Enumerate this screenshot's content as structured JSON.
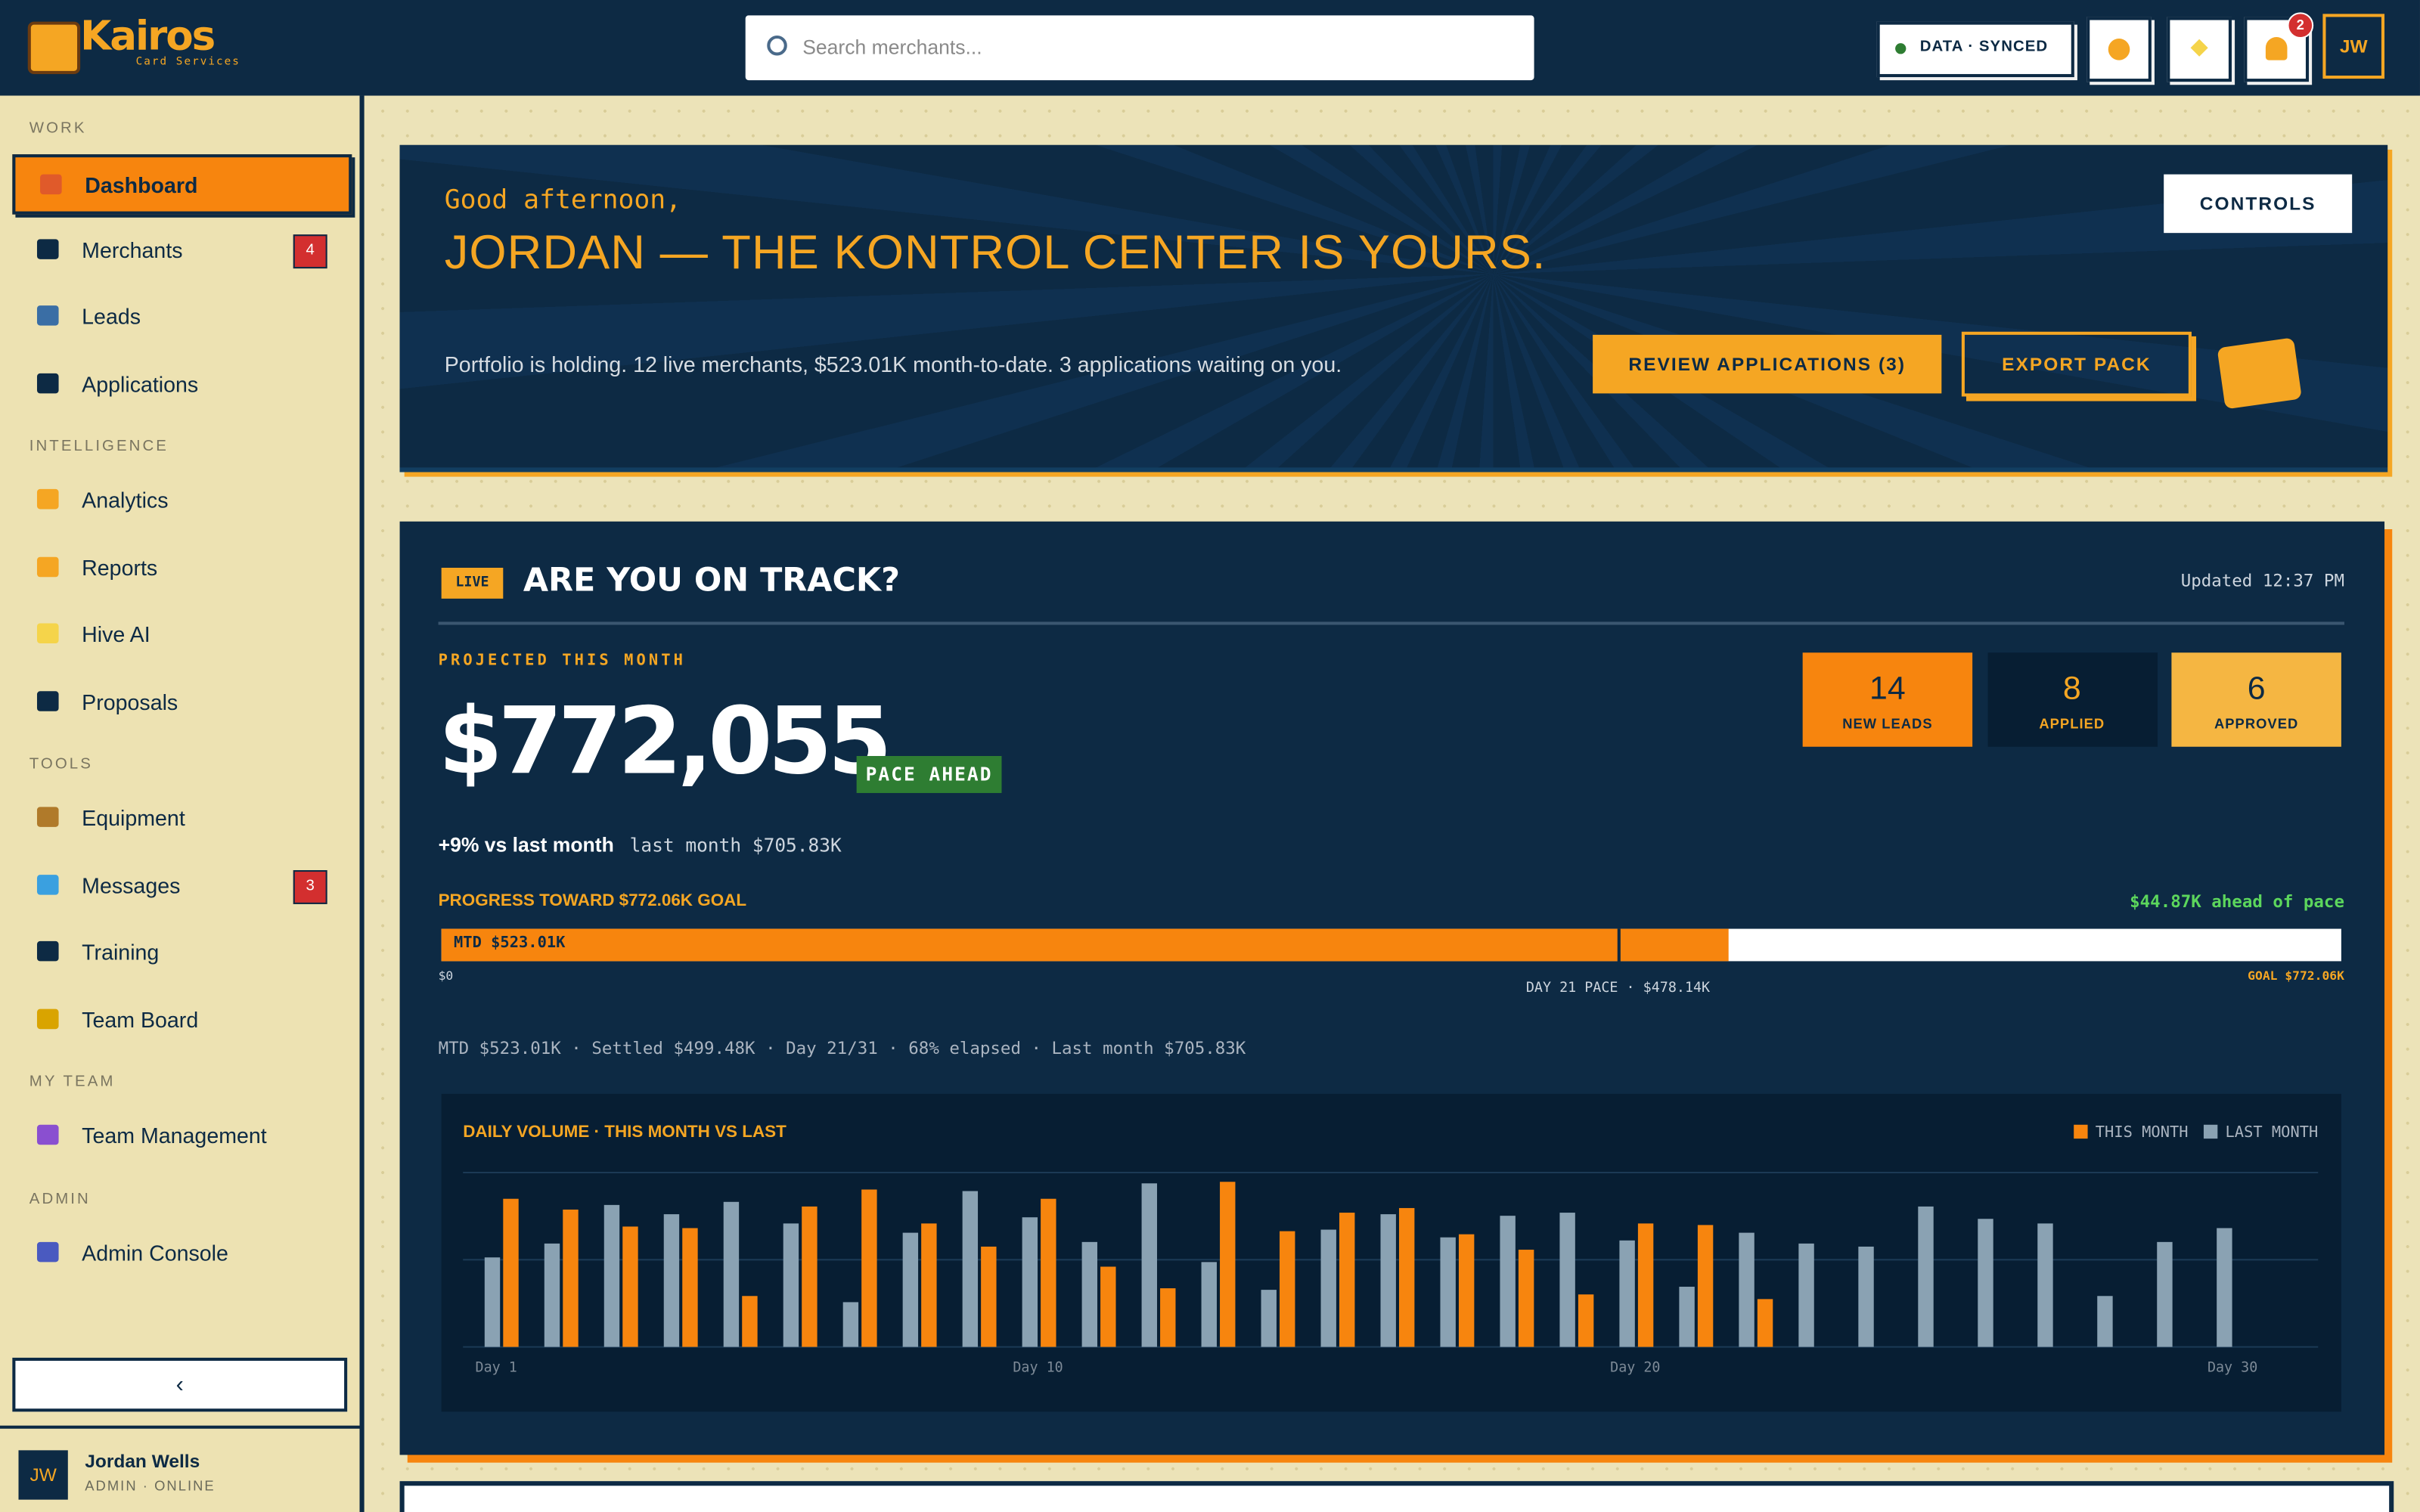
{
  "header": {
    "logo": "Kairos",
    "logo_sub": "Card Services",
    "search_placeholder": "Search merchants...",
    "sync_status": "DATA · SYNCED",
    "notifications": "2",
    "avatar": "JW"
  },
  "sidebar": {
    "sections": [
      {
        "title": "WORK",
        "items": [
          {
            "label": "Dashboard"
          },
          {
            "label": "Merchants",
            "badge": "4"
          },
          {
            "label": "Leads"
          },
          {
            "label": "Applications"
          }
        ]
      },
      {
        "title": "INTELLIGENCE",
        "items": [
          {
            "label": "Analytics"
          },
          {
            "label": "Reports"
          },
          {
            "label": "Hive AI"
          },
          {
            "label": "Proposals"
          }
        ]
      },
      {
        "title": "TOOLS",
        "items": [
          {
            "label": "Equipment"
          },
          {
            "label": "Messages",
            "badge": "3"
          },
          {
            "label": "Training"
          },
          {
            "label": "Team Board"
          }
        ]
      },
      {
        "title": "MY TEAM",
        "items": [
          {
            "label": "Team Management"
          }
        ]
      },
      {
        "title": "ADMIN",
        "items": [
          {
            "label": "Admin Console"
          }
        ]
      }
    ],
    "collapse": "‹",
    "user": {
      "initials": "JW",
      "name": "Jordan Wells",
      "role": "ADMIN · ONLINE"
    }
  },
  "hero": {
    "greeting": "Good afternoon,",
    "headline": "JORDAN — THE KONTROL CENTER IS YOURS.",
    "summary": "Portfolio is holding. 12 live merchants, $523.01K month-to-date. 3 applications waiting on you.",
    "controls": "CONTROLS",
    "review": "REVIEW APPLICATIONS (3)",
    "export": "EXPORT PACK"
  },
  "track": {
    "badge": "LIVE",
    "title": "ARE YOU ON TRACK?",
    "updated": "Updated 12:37 PM",
    "projected_label": "PROJECTED THIS MONTH",
    "projected": "$772,055",
    "pace": "PACE AHEAD",
    "delta": "+9% vs last month",
    "last_month": "last month $705.83K",
    "stats": [
      {
        "value": "14",
        "label": "NEW LEADS"
      },
      {
        "value": "8",
        "label": "APPLIED"
      },
      {
        "value": "6",
        "label": "APPROVED"
      }
    ],
    "progress_label": "PROGRESS TOWARD $772.06K GOAL",
    "ahead": "$44.87K ahead of pace",
    "progress": {
      "mtd": 523.01,
      "mtd_label": "MTD $523.01K",
      "pace": 478.14,
      "pace_label": "DAY 21 PACE · $478.14K",
      "goal": 772.06,
      "goal_label": "GOAL $772.06K",
      "start": 0,
      "start_label": "$0"
    },
    "footer": "MTD $523.01K · Settled $499.48K · Day 21/31 · 68% elapsed · Last month $705.83K"
  },
  "chart_data": {
    "type": "bar",
    "title": "DAILY VOLUME · THIS MONTH VS LAST",
    "categories": [
      "Day 1",
      null,
      null,
      null,
      null,
      null,
      null,
      null,
      null,
      "Day 10",
      null,
      null,
      null,
      null,
      null,
      null,
      null,
      null,
      null,
      "Day 20",
      null,
      null,
      null,
      null,
      null,
      null,
      null,
      null,
      null,
      "Day 30",
      null
    ],
    "series": [
      {
        "name": "LAST MONTH",
        "color": "#8aa2b3",
        "values": [
          58,
          67,
          92,
          86,
          94,
          80,
          29,
          74,
          101,
          84,
          68,
          106,
          55,
          37,
          76,
          86,
          71,
          85,
          87,
          69,
          39,
          74,
          67,
          65,
          91,
          83,
          80,
          33,
          68,
          77,
          null
        ]
      },
      {
        "name": "THIS MONTH",
        "color": "#f7850e",
        "values": [
          96,
          89,
          78,
          77,
          33,
          91,
          102,
          80,
          65,
          96,
          52,
          38,
          107,
          75,
          87,
          90,
          73,
          63,
          34,
          80,
          79,
          31,
          null,
          null,
          null,
          null,
          null,
          null,
          null,
          null,
          null
        ]
      }
    ],
    "ylim": [
      0,
      113
    ],
    "legend": "top-right",
    "grid": true
  }
}
